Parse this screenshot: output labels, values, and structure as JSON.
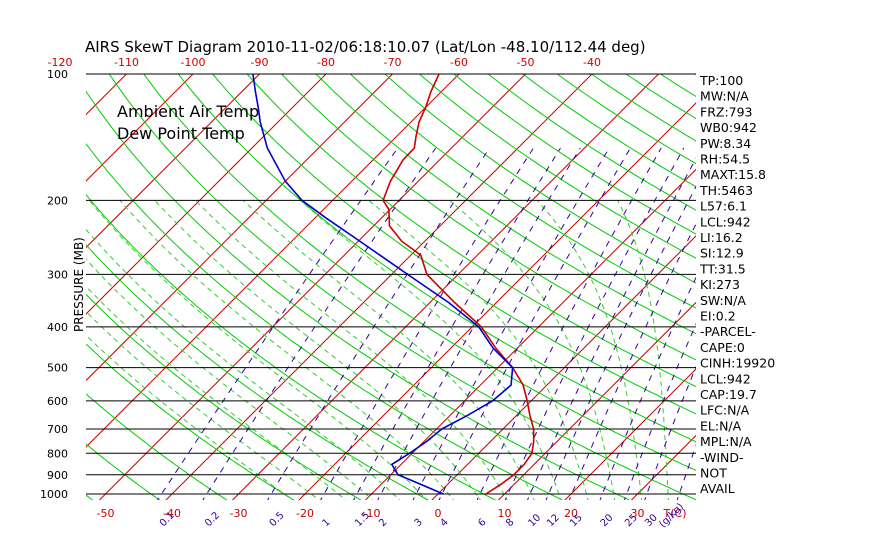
{
  "title": "AIRS SkewT Diagram 2010-11-02/06:18:10.07 (Lat/Lon -48.10/112.44 deg)",
  "ylabel": "PRESSURE (MB)",
  "legend": {
    "ambient": "Ambient Air Temp",
    "dewpoint": "Dew Point Temp"
  },
  "colors": {
    "temperature": "#cc0000",
    "dewpoint": "#0000cc",
    "isotherm": "#cc0000",
    "dry_adiabat": "#00cc00",
    "moist_adiabat": "#33cc33",
    "mixing_ratio": "#330099",
    "isobar": "#000000"
  },
  "chart_data": {
    "type": "line",
    "title": "AIRS SkewT Diagram 2010-11-02/06:18:10.07 (Lat/Lon -48.10/112.44 deg)",
    "ylabel": "PRESSURE (MB)",
    "ylim": [
      1000,
      100
    ],
    "y_scale": "log",
    "pressure_ticks": [
      100,
      200,
      300,
      400,
      500,
      600,
      700,
      800,
      900,
      1000
    ],
    "pressure_tick_labels": [
      "100",
      "200",
      "300",
      "400",
      "500",
      "600",
      "700",
      "800",
      "900",
      "1000"
    ],
    "top_temp_ticks": [
      -120,
      -110,
      -100,
      -90,
      -80,
      -70,
      -60,
      -50,
      -40
    ],
    "top_temp_labels": [
      "-120",
      "-110",
      "-100",
      "-90",
      "-80",
      "-70",
      "-60",
      "-50",
      "-40"
    ],
    "bottom_temp_ticks": [
      -50,
      -40,
      -30,
      -20,
      -10,
      0,
      10,
      20,
      30
    ],
    "bottom_temp_labels": [
      "-50",
      "-40",
      "-30",
      "-20",
      "-10",
      "0",
      "10",
      "20",
      "30"
    ],
    "bottom_unit": "T(C)",
    "mixing_ratio_ticks": [
      0.1,
      0.2,
      0.5,
      1,
      1.5,
      2,
      3,
      4,
      6,
      8,
      10,
      12,
      15,
      20,
      25,
      30,
      40
    ],
    "mixing_ratio_labels": [
      "0.1",
      "0.2",
      "0.5",
      "1",
      "1.5",
      "2",
      "3",
      "4",
      "6",
      "8",
      "10",
      "12",
      "15",
      "20",
      "25",
      "30",
      "40"
    ],
    "mixing_ratio_unit": "(g/kg)",
    "series": [
      {
        "name": "Ambient Air Temp",
        "color": "#cc0000",
        "points": [
          {
            "p": 1000,
            "t": 7.2
          },
          {
            "p": 950,
            "t": 8.0
          },
          {
            "p": 900,
            "t": 8.5
          },
          {
            "p": 850,
            "t": 8.5
          },
          {
            "p": 800,
            "t": 8.0
          },
          {
            "p": 750,
            "t": 6.5
          },
          {
            "p": 700,
            "t": 4.6
          },
          {
            "p": 650,
            "t": 2.0
          },
          {
            "p": 600,
            "t": -0.6
          },
          {
            "p": 550,
            "t": -3.6
          },
          {
            "p": 500,
            "t": -7.8
          },
          {
            "p": 450,
            "t": -13.2
          },
          {
            "p": 400,
            "t": -18.6
          },
          {
            "p": 350,
            "t": -26.3
          },
          {
            "p": 300,
            "t": -34.7
          },
          {
            "p": 270,
            "t": -38.5
          },
          {
            "p": 250,
            "t": -43.5
          },
          {
            "p": 230,
            "t": -47.6
          },
          {
            "p": 210,
            "t": -50.2
          },
          {
            "p": 200,
            "t": -52.4
          },
          {
            "p": 180,
            "t": -54.2
          },
          {
            "p": 160,
            "t": -55.5
          },
          {
            "p": 150,
            "t": -55.6
          },
          {
            "p": 140,
            "t": -57.2
          },
          {
            "p": 130,
            "t": -58.8
          },
          {
            "p": 120,
            "t": -60.0
          },
          {
            "p": 110,
            "t": -61.6
          },
          {
            "p": 100,
            "t": -63.0
          }
        ]
      },
      {
        "name": "Dew Point Temp",
        "color": "#0000cc",
        "points": [
          {
            "p": 1000,
            "t": 0.8
          },
          {
            "p": 950,
            "t": -3.9
          },
          {
            "p": 900,
            "t": -8.9
          },
          {
            "p": 850,
            "t": -11.4
          },
          {
            "p": 800,
            "t": -10.4
          },
          {
            "p": 750,
            "t": -9.6
          },
          {
            "p": 700,
            "t": -9.2
          },
          {
            "p": 650,
            "t": -7.4
          },
          {
            "p": 600,
            "t": -5.8
          },
          {
            "p": 550,
            "t": -5.4
          },
          {
            "p": 500,
            "t": -7.8
          },
          {
            "p": 450,
            "t": -13.6
          },
          {
            "p": 400,
            "t": -19.0
          },
          {
            "p": 350,
            "t": -27.2
          },
          {
            "p": 300,
            "t": -37.6
          },
          {
            "p": 250,
            "t": -49.8
          },
          {
            "p": 220,
            "t": -58.4
          },
          {
            "p": 200,
            "t": -64.6
          },
          {
            "p": 180,
            "t": -70.0
          },
          {
            "p": 150,
            "t": -77.7
          },
          {
            "p": 130,
            "t": -82.7
          },
          {
            "p": 120,
            "t": -85.2
          },
          {
            "p": 110,
            "t": -88.0
          },
          {
            "p": 100,
            "t": -91.0
          }
        ]
      }
    ],
    "indices": [
      "TP:100",
      "MW:N/A",
      "FRZ:793",
      "WB0:942",
      "PW:8.34",
      "RH:54.5",
      "MAXT:15.8",
      "TH:5463",
      "L57:6.1",
      "LCL:942",
      "LI:16.2",
      "SI:12.9",
      "TT:31.5",
      "KI:273",
      "SW:N/A",
      "EI:0.2",
      "-PARCEL-",
      "CAPE:0",
      "CINH:19920",
      "LCL:942",
      "CAP:19.7",
      "LFC:N/A",
      "EL:N/A",
      "MPL:N/A",
      "-WIND-",
      "NOT",
      "AVAIL"
    ]
  }
}
